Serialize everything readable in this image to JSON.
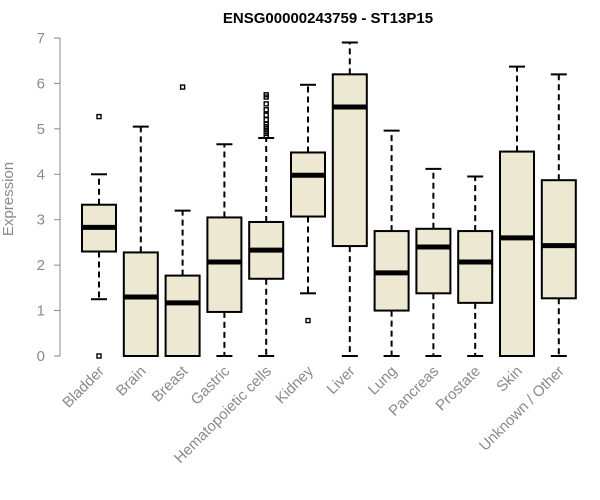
{
  "chart_data": {
    "type": "boxplot",
    "title": "ENSG00000243759 - ST13P15",
    "xlabel": "",
    "ylabel": "Expression",
    "ylim": [
      0,
      7
    ],
    "yticks": [
      0,
      1,
      2,
      3,
      4,
      5,
      6,
      7
    ],
    "box_color": "#ede8d1",
    "categories": [
      "Bladder",
      "Brain",
      "Breast",
      "Gastric",
      "Hematopoietic cells",
      "Kidney",
      "Liver",
      "Lung",
      "Pancreas",
      "Prostate",
      "Skin",
      "Unknown / Other"
    ],
    "boxes": [
      {
        "min": 1.25,
        "q1": 2.3,
        "median": 2.83,
        "q3": 3.33,
        "max": 4.0,
        "outliers": [
          5.27,
          0.0
        ]
      },
      {
        "min": 0.0,
        "q1": 0.0,
        "median": 1.3,
        "q3": 2.28,
        "max": 5.05,
        "outliers": []
      },
      {
        "min": 0.0,
        "q1": 0.0,
        "median": 1.17,
        "q3": 1.77,
        "max": 3.2,
        "outliers": [
          5.92
        ]
      },
      {
        "min": 0.0,
        "q1": 0.97,
        "median": 2.07,
        "q3": 3.05,
        "max": 4.66,
        "outliers": []
      },
      {
        "min": 0.0,
        "q1": 1.7,
        "median": 2.33,
        "q3": 2.95,
        "max": 4.8,
        "outliers": [
          4.85,
          4.9,
          4.95,
          5.0,
          5.05,
          5.1,
          5.2,
          5.3,
          5.42,
          5.55,
          5.7,
          5.75
        ]
      },
      {
        "min": 1.38,
        "q1": 3.07,
        "median": 3.98,
        "q3": 4.48,
        "max": 5.97,
        "outliers": [
          0.78
        ]
      },
      {
        "min": 0.0,
        "q1": 2.42,
        "median": 5.48,
        "q3": 6.2,
        "max": 6.9,
        "outliers": []
      },
      {
        "min": 0.0,
        "q1": 1.0,
        "median": 1.83,
        "q3": 2.75,
        "max": 4.96,
        "outliers": []
      },
      {
        "min": 0.0,
        "q1": 1.38,
        "median": 2.4,
        "q3": 2.8,
        "max": 4.12,
        "outliers": []
      },
      {
        "min": 0.0,
        "q1": 1.17,
        "median": 2.07,
        "q3": 2.75,
        "max": 3.95,
        "outliers": []
      },
      {
        "min": 0.0,
        "q1": 0.0,
        "median": 2.6,
        "q3": 4.5,
        "max": 6.37,
        "outliers": []
      },
      {
        "min": 0.0,
        "q1": 1.27,
        "median": 2.43,
        "q3": 3.87,
        "max": 6.2,
        "outliers": []
      }
    ]
  }
}
